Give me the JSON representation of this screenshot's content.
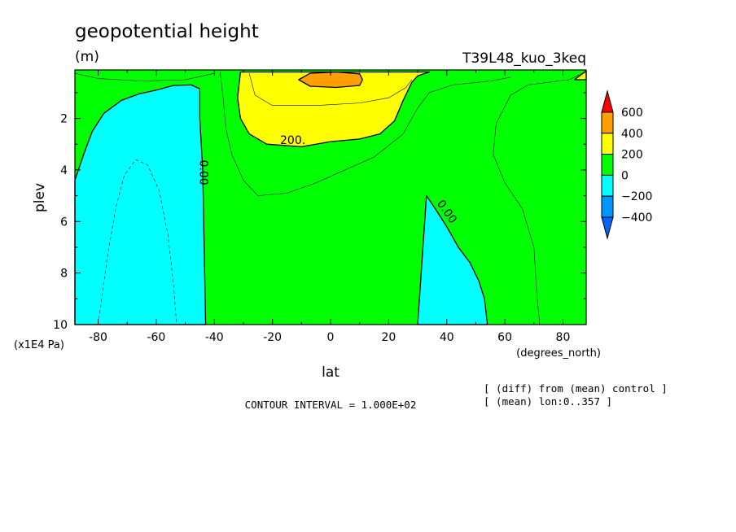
{
  "chart_data": {
    "type": "contour",
    "title": "geopotential height",
    "units_label": "(m)",
    "experiment_label": "T39L48_kuo_3keq",
    "xlabel": "lat",
    "x_units": "(degrees_north)",
    "ylabel": "plev",
    "y_units": "(x1E4 Pa)",
    "xlim": [
      -88,
      88
    ],
    "ylim": [
      10,
      0.12
    ],
    "x_ticks": [
      -80,
      -60,
      -40,
      -20,
      0,
      20,
      40,
      60,
      80
    ],
    "y_ticks": [
      2,
      4,
      6,
      8,
      10
    ],
    "contour_interval_text": "CONTOUR INTERVAL = 1.000E+02",
    "notes": [
      "[ (diff) from (mean) control ]",
      "[ (mean) lon:0..357 ]"
    ],
    "colorbar": {
      "levels": [
        600,
        400,
        200,
        0,
        -200,
        -400
      ],
      "colors": {
        "above_400": "#ff9f00",
        "200_400": "#ffff00",
        "0_200": "#00ff00",
        "minus200_0": "#00ffff",
        "minus400_minus200": "#0096ff",
        "above_600": "#ff0000",
        "below_minus400": "#0064ff"
      }
    },
    "contour_labels": [
      {
        "text": "200.",
        "lat": -13,
        "plev": 3.0
      },
      {
        "text": "0.00",
        "lat": -45,
        "plev": 4.1
      },
      {
        "text": "0.00",
        "lat": 39,
        "plev": 5.7
      }
    ],
    "regions": [
      {
        "name": "negative-region-south",
        "value_range": [
          -200,
          0
        ],
        "boundary": [
          [
            -88,
            4.4
          ],
          [
            -85,
            3.4
          ],
          [
            -82,
            2.5
          ],
          [
            -78,
            1.8
          ],
          [
            -72,
            1.3
          ],
          [
            -66,
            1.05
          ],
          [
            -60,
            0.9
          ],
          [
            -54,
            0.72
          ],
          [
            -48,
            0.7
          ],
          [
            -45,
            0.85
          ],
          [
            -45,
            2.0
          ],
          [
            -44,
            4.0
          ],
          [
            -43.5,
            7.0
          ],
          [
            -43,
            10.0
          ],
          [
            -88,
            10.0
          ]
        ]
      },
      {
        "name": "negative-region-north",
        "value_range": [
          -200,
          0
        ],
        "boundary": [
          [
            30,
            10.0
          ],
          [
            31.5,
            7.5
          ],
          [
            33,
            5.0
          ],
          [
            36,
            5.5
          ],
          [
            40,
            6.2
          ],
          [
            44,
            7.0
          ],
          [
            48,
            7.6
          ],
          [
            51,
            8.3
          ],
          [
            53,
            9.0
          ],
          [
            54,
            10.0
          ]
        ]
      },
      {
        "name": "positive-region-200-400",
        "value_range": [
          200,
          400
        ],
        "boundary": [
          [
            -31,
            0.2
          ],
          [
            -32,
            1.2
          ],
          [
            -31,
            2.0
          ],
          [
            -28,
            2.6
          ],
          [
            -22,
            3.0
          ],
          [
            -10,
            3.1
          ],
          [
            0,
            2.9
          ],
          [
            10,
            2.8
          ],
          [
            17,
            2.6
          ],
          [
            22,
            2.1
          ],
          [
            25,
            1.3
          ],
          [
            28,
            0.6
          ],
          [
            30,
            0.35
          ],
          [
            34,
            0.2
          ],
          [
            -31,
            0.2
          ]
        ]
      },
      {
        "name": "positive-region-400-600",
        "value_range": [
          400,
          600
        ],
        "boundary": [
          [
            -11,
            0.5
          ],
          [
            -7,
            0.25
          ],
          [
            2,
            0.2
          ],
          [
            10,
            0.27
          ],
          [
            11,
            0.5
          ],
          [
            10,
            0.72
          ],
          [
            2,
            0.8
          ],
          [
            -7,
            0.75
          ],
          [
            -11,
            0.5
          ]
        ]
      },
      {
        "name": "positive-sliver-north",
        "value_range": [
          200,
          400
        ],
        "boundary": [
          [
            84,
            0.5
          ],
          [
            88,
            0.15
          ],
          [
            88,
            0.5
          ]
        ]
      }
    ],
    "thin_contours": [
      {
        "name": "contour-100-inner",
        "points": [
          [
            -28,
            0.25
          ],
          [
            -26,
            1.1
          ],
          [
            -20,
            1.5
          ],
          [
            -5,
            1.5
          ],
          [
            10,
            1.4
          ],
          [
            20,
            1.2
          ],
          [
            26,
            0.8
          ],
          [
            28,
            0.5
          ]
        ]
      },
      {
        "name": "contour-100-outer",
        "points": [
          [
            -38,
            0.2
          ],
          [
            -37,
            1.2
          ],
          [
            -36,
            2.4
          ],
          [
            -34,
            3.4
          ],
          [
            -30,
            4.4
          ],
          [
            -25,
            5.0
          ],
          [
            -15,
            4.9
          ],
          [
            -5,
            4.5
          ],
          [
            5,
            4.0
          ],
          [
            15,
            3.5
          ],
          [
            25,
            2.6
          ],
          [
            30,
            1.6
          ],
          [
            34,
            1.0
          ],
          [
            42,
            0.7
          ],
          [
            55,
            0.55
          ],
          [
            62,
            0.4
          ]
        ]
      },
      {
        "name": "contour-100-north",
        "points": [
          [
            88,
            0.2
          ],
          [
            82,
            0.5
          ],
          [
            68,
            0.7
          ],
          [
            62,
            1.1
          ],
          [
            57,
            2.2
          ],
          [
            56,
            3.4
          ],
          [
            60,
            4.5
          ],
          [
            66,
            5.5
          ],
          [
            70,
            7.0
          ],
          [
            71,
            8.8
          ],
          [
            72,
            10.0
          ]
        ]
      },
      {
        "name": "contour-100-topleft",
        "points": [
          [
            -88,
            0.25
          ],
          [
            -80,
            0.45
          ],
          [
            -65,
            0.55
          ],
          [
            -50,
            0.5
          ],
          [
            -44,
            0.35
          ],
          [
            -40,
            0.25
          ]
        ]
      },
      {
        "name": "contour-minus100-dashed",
        "points": [
          [
            -80,
            10.0
          ],
          [
            -77,
            7.5
          ],
          [
            -74,
            5.5
          ],
          [
            -71,
            4.2
          ],
          [
            -67,
            3.6
          ],
          [
            -63,
            3.8
          ],
          [
            -59,
            4.8
          ],
          [
            -56,
            6.5
          ],
          [
            -54,
            8.5
          ],
          [
            -53,
            10.0
          ]
        ]
      }
    ]
  }
}
